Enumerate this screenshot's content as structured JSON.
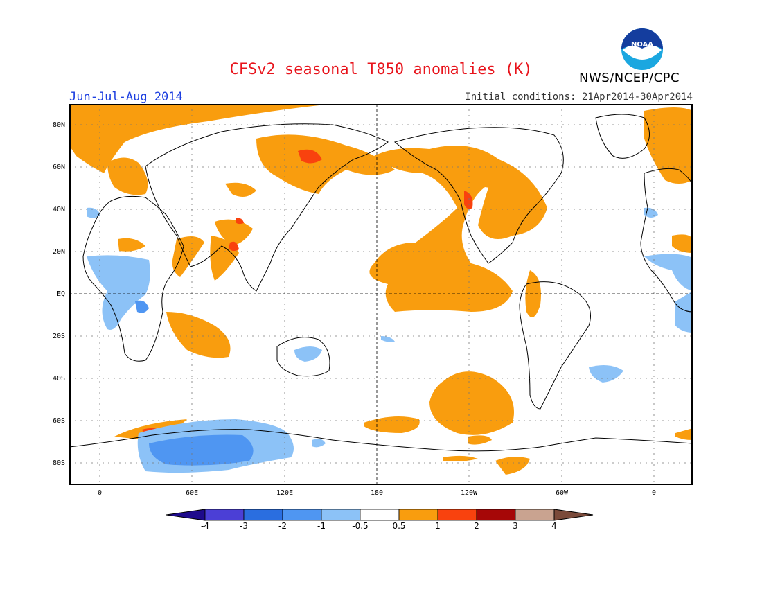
{
  "title": "CFSv2 seasonal T850 anomalies (K)",
  "period": "Jun-Jul-Aug 2014",
  "initial_conditions": "Initial conditions: 21Apr2014-30Apr2014",
  "agency": "NWS/NCEP/CPC",
  "logo_text": "NOAA",
  "lat_labels": [
    "80N",
    "60N",
    "40N",
    "20N",
    "EQ",
    "20S",
    "40S",
    "60S",
    "80S"
  ],
  "lon_labels": [
    "0",
    "60E",
    "120E",
    "180",
    "120W",
    "60W",
    "0"
  ],
  "colorbar": {
    "labels": [
      "-4",
      "-3",
      "-2",
      "-1",
      "-0.5",
      "0.5",
      "1",
      "2",
      "3",
      "4"
    ],
    "colors": [
      "#1e0a8c",
      "#4b3fd6",
      "#2a6ee0",
      "#4f96f2",
      "#8cc2f7",
      "#ffffff",
      "#f99d0e",
      "#f9420e",
      "#a60707",
      "#c9a390",
      "#7a4a3a"
    ]
  },
  "colors": {
    "warm1": "#f99d0e",
    "warm2": "#f9420e",
    "cool1": "#8cc2f7",
    "cool2": "#4f96f2",
    "title": "#e8141c",
    "period": "#1d3fe0"
  }
}
